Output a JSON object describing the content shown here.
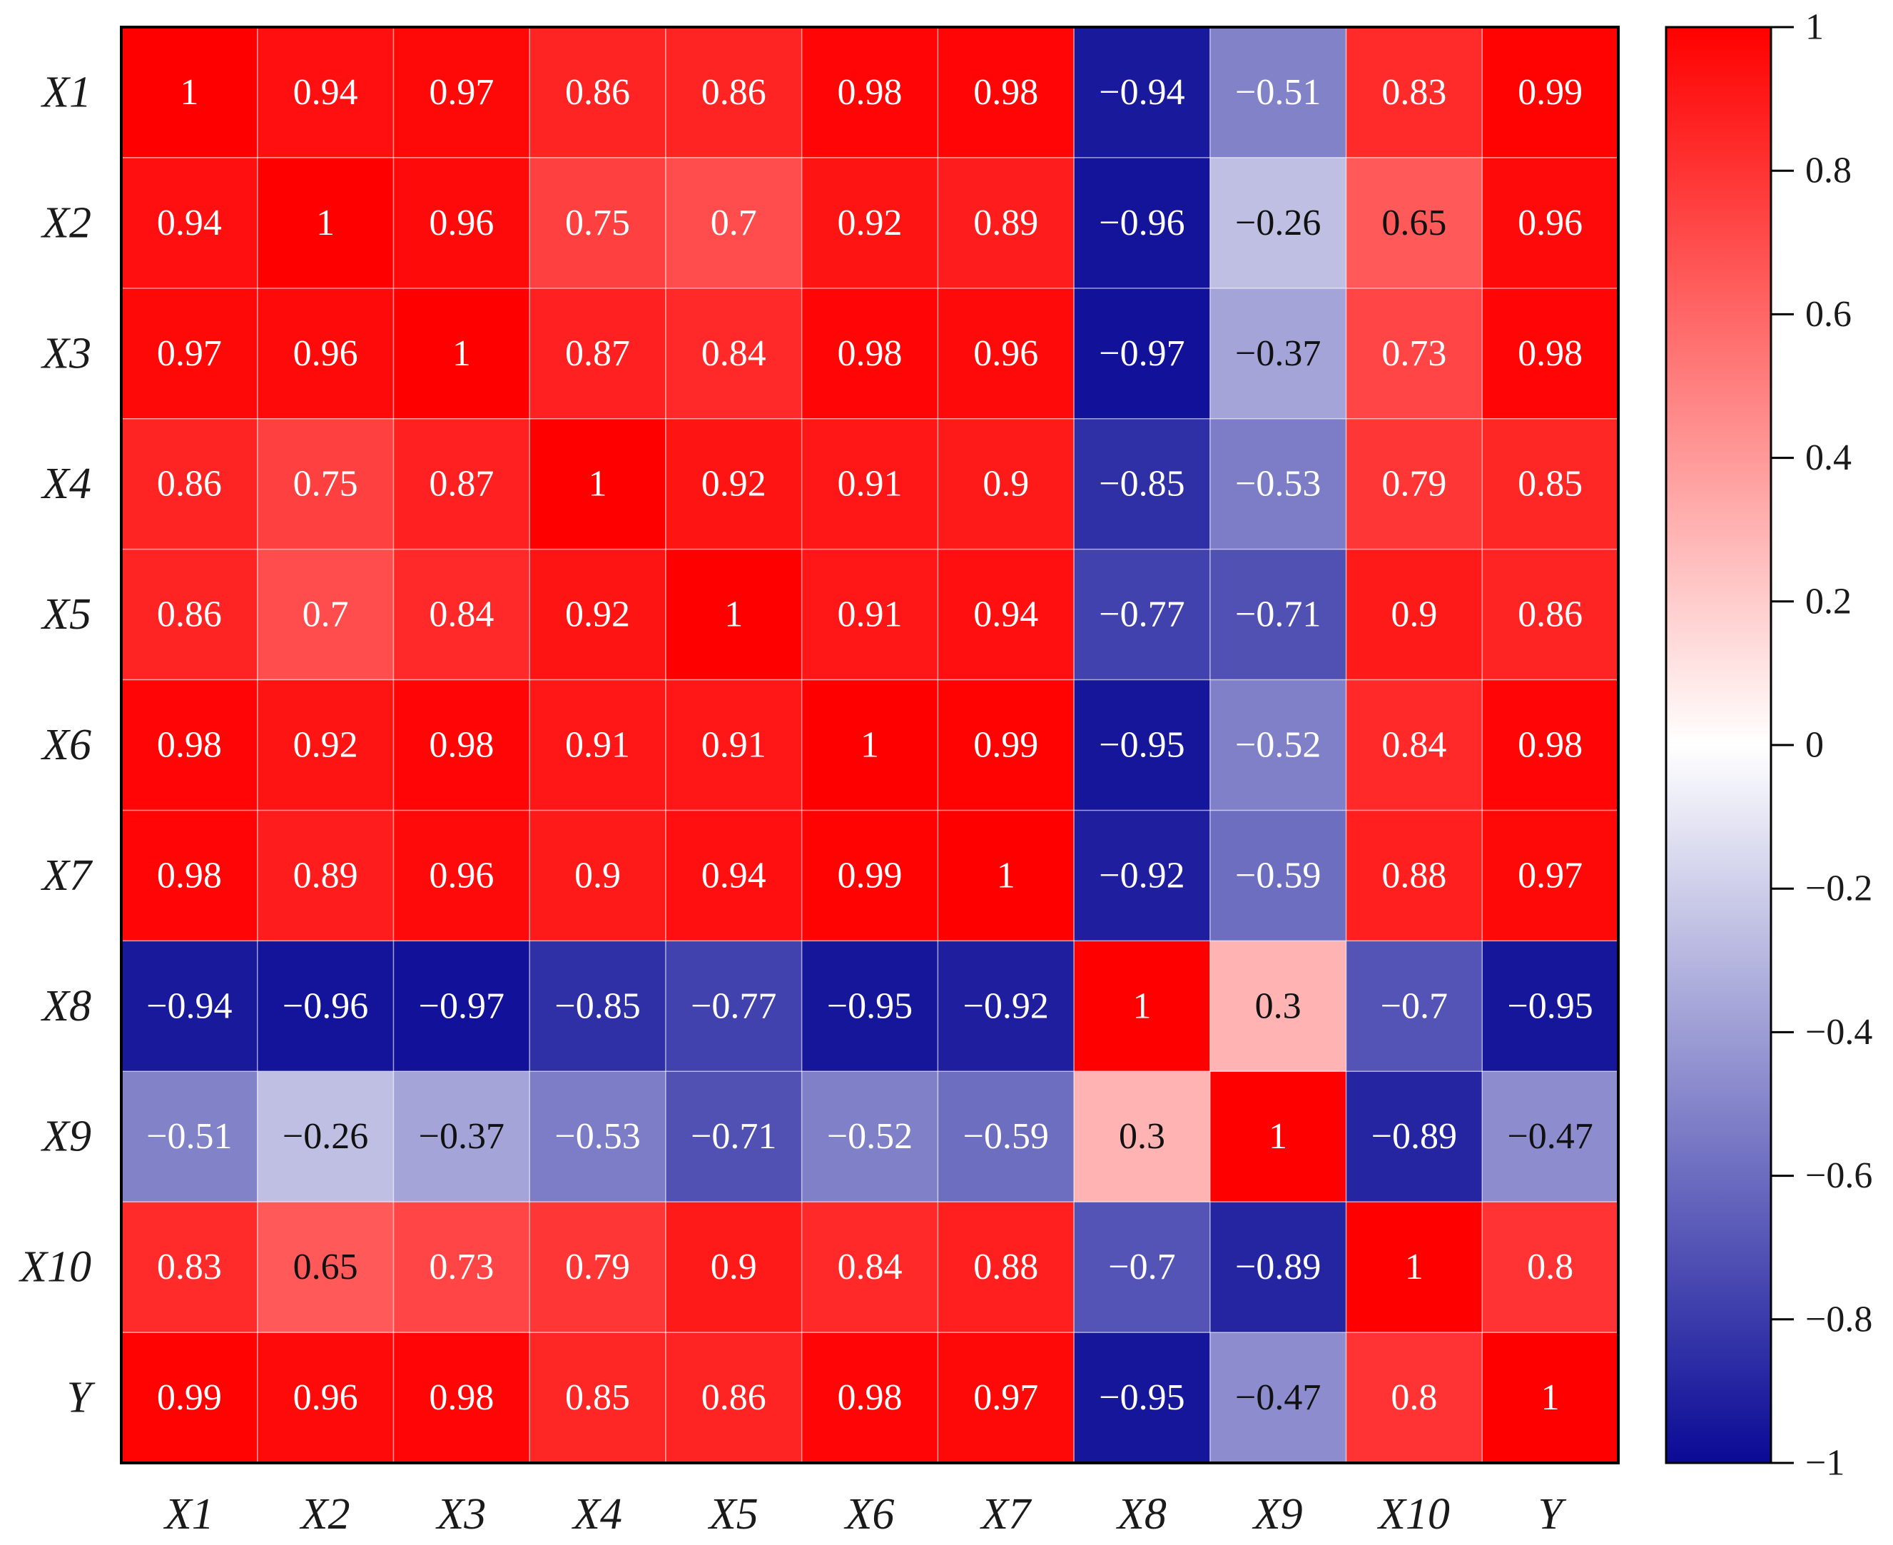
{
  "chart_data": {
    "type": "heatmap",
    "title": "",
    "row_labels": [
      "X1",
      "X2",
      "X3",
      "X4",
      "X5",
      "X6",
      "X7",
      "X8",
      "X9",
      "X10",
      "Y"
    ],
    "col_labels": [
      "X1",
      "X2",
      "X3",
      "X4",
      "X5",
      "X6",
      "X7",
      "X8",
      "X9",
      "X10",
      "Y"
    ],
    "values": [
      [
        1,
        0.94,
        0.97,
        0.86,
        0.86,
        0.98,
        0.98,
        -0.94,
        -0.51,
        0.83,
        0.99
      ],
      [
        0.94,
        1,
        0.96,
        0.75,
        0.7,
        0.92,
        0.89,
        -0.96,
        -0.26,
        0.65,
        0.96
      ],
      [
        0.97,
        0.96,
        1,
        0.87,
        0.84,
        0.98,
        0.96,
        -0.97,
        -0.37,
        0.73,
        0.98
      ],
      [
        0.86,
        0.75,
        0.87,
        1,
        0.92,
        0.91,
        0.9,
        -0.85,
        -0.53,
        0.79,
        0.85
      ],
      [
        0.86,
        0.7,
        0.84,
        0.92,
        1,
        0.91,
        0.94,
        -0.77,
        -0.71,
        0.9,
        0.86
      ],
      [
        0.98,
        0.92,
        0.98,
        0.91,
        0.91,
        1,
        0.99,
        -0.95,
        -0.52,
        0.84,
        0.98
      ],
      [
        0.98,
        0.89,
        0.96,
        0.9,
        0.94,
        0.99,
        1,
        -0.92,
        -0.59,
        0.88,
        0.97
      ],
      [
        -0.94,
        -0.96,
        -0.97,
        -0.85,
        -0.77,
        -0.95,
        -0.92,
        1,
        0.3,
        -0.7,
        -0.95
      ],
      [
        -0.51,
        -0.26,
        -0.37,
        -0.53,
        -0.71,
        -0.52,
        -0.59,
        0.3,
        1,
        -0.89,
        -0.47
      ],
      [
        0.83,
        0.65,
        0.73,
        0.79,
        0.9,
        0.84,
        0.88,
        -0.7,
        -0.89,
        1,
        0.8
      ],
      [
        0.99,
        0.96,
        0.98,
        0.85,
        0.86,
        0.98,
        0.97,
        -0.95,
        -0.47,
        0.8,
        1
      ]
    ],
    "colorbar": {
      "range": [
        -1,
        1
      ],
      "ticks": [
        1,
        0.8,
        0.6,
        0.4,
        0.2,
        0,
        -0.2,
        -0.4,
        -0.6,
        -0.8,
        -1
      ],
      "tick_labels": [
        "1",
        "0.8",
        "0.6",
        "0.4",
        "0.2",
        "0",
        "−0.2",
        "−0.4",
        "−0.6",
        "−0.8",
        "−1"
      ],
      "colors": {
        "negative": "#0a0a96",
        "zero": "#ffffff",
        "positive": "#ff0000"
      }
    },
    "grid_line_color": "#ffffff",
    "frame_color": "#000000",
    "text_colors": {
      "light": "#ffffff",
      "dark": "#111111"
    }
  }
}
